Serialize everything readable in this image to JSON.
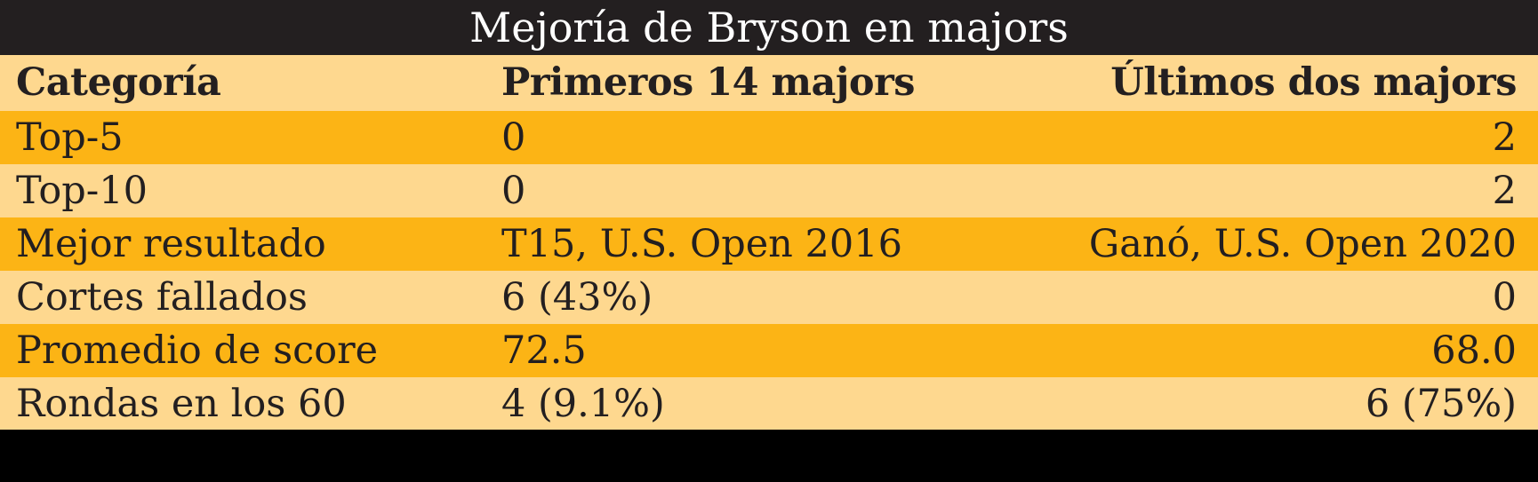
{
  "chart_data": {
    "type": "table",
    "title": "Mejoría de Bryson en majors",
    "columns": [
      "Categoría",
      "Primeros 14 majors",
      "Últimos dos majors"
    ],
    "rows": [
      [
        "Top-5",
        "0",
        "2"
      ],
      [
        "Top-10",
        "0",
        "2"
      ],
      [
        "Mejor resultado",
        "T15, U.S. Open 2016",
        "Ganó, U.S. Open 2020"
      ],
      [
        "Cortes fallados",
        "6 (43%)",
        "0"
      ],
      [
        "Promedio de score",
        "72.5",
        "68.0"
      ],
      [
        "Rondas en los 60",
        "4 (9.1%)",
        "6 (75%)"
      ]
    ]
  },
  "colors": {
    "title_background": "#231f20",
    "title_text": "#ffffff",
    "row_light": "#fed88f",
    "row_dark": "#fcb415",
    "bottom_bar": "#000000"
  }
}
